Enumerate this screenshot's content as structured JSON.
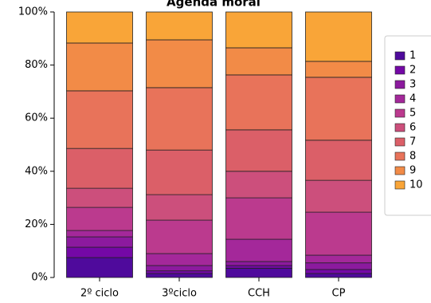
{
  "chart_data": {
    "type": "stacked_bar_percent",
    "title": "Agenda moral",
    "categories": [
      "2º ciclo",
      "3ºciclo",
      "CCH",
      "CP"
    ],
    "series": [
      {
        "name": "1",
        "color": "#4f0a9c",
        "values": [
          7.5,
          1.5,
          3.5,
          1.5
        ]
      },
      {
        "name": "2",
        "color": "#7408a6",
        "values": [
          3.9,
          1.0,
          1.0,
          1.5
        ]
      },
      {
        "name": "3",
        "color": "#8c1a9e",
        "values": [
          3.9,
          2.0,
          1.5,
          2.5
        ]
      },
      {
        "name": "4",
        "color": "#a4289a",
        "values": [
          2.4,
          4.5,
          8.4,
          2.9
        ]
      },
      {
        "name": "5",
        "color": "#bb3a8e",
        "values": [
          8.7,
          12.6,
          15.6,
          16.2
        ]
      },
      {
        "name": "6",
        "color": "#cc4f7c",
        "values": [
          7.2,
          9.6,
          10.0,
          12.0
        ]
      },
      {
        "name": "7",
        "color": "#db5f68",
        "values": [
          15.0,
          16.8,
          15.6,
          15.1
        ]
      },
      {
        "name": "8",
        "color": "#e8735a",
        "values": [
          21.7,
          23.5,
          20.7,
          23.7
        ]
      },
      {
        "name": "9",
        "color": "#f28b47",
        "values": [
          18.0,
          18.0,
          10.2,
          6.0
        ]
      },
      {
        "name": "10",
        "color": "#f9a538",
        "values": [
          11.7,
          10.5,
          13.5,
          18.6
        ]
      }
    ],
    "ylim": [
      0,
      100
    ],
    "yticks": [
      {
        "value": 0,
        "label": "0%"
      },
      {
        "value": 20,
        "label": "20%"
      },
      {
        "value": 40,
        "label": "40%"
      },
      {
        "value": 60,
        "label": "60%"
      },
      {
        "value": 80,
        "label": "80%"
      },
      {
        "value": 100,
        "label": "100%"
      }
    ],
    "legend": "right"
  }
}
